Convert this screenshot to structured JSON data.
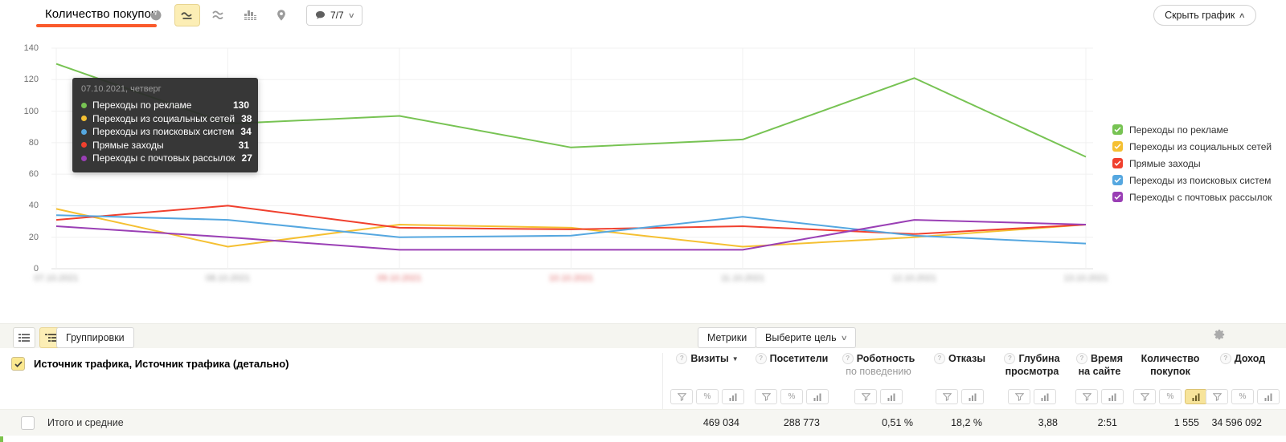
{
  "header": {
    "title": "Количество покупок",
    "chart_type_icons": [
      "pie-chart-icon",
      "line-chart-icon",
      "stacked-area-icon",
      "bar-columns-icon",
      "map-pin-icon"
    ],
    "selected_chart_type": "line-chart-icon",
    "segments": {
      "icon": "comment-icon",
      "label": "7/7"
    },
    "hide_chart_label": "Скрыть график"
  },
  "chart_data": {
    "type": "line",
    "x": [
      "07.10.2021",
      "08.10.2021",
      "09.10.2021",
      "10.10.2021",
      "11.10.2021",
      "12.10.2021",
      "13.10.2021"
    ],
    "x_weekend_indices": [
      2,
      3
    ],
    "x_labels_blurred": true,
    "ylim": [
      0,
      140
    ],
    "yticks": [
      0,
      20,
      40,
      60,
      80,
      100,
      120,
      140
    ],
    "grid": true,
    "legend_position": "right",
    "series": [
      {
        "name": "Переходы по рекламе",
        "color": "#77c353",
        "values": [
          130,
          92,
          97,
          77,
          82,
          121,
          71
        ]
      },
      {
        "name": "Переходы из социальных сетей",
        "color": "#f5c032",
        "values": [
          38,
          14,
          28,
          26,
          14,
          20,
          28
        ]
      },
      {
        "name": "Прямые заходы",
        "color": "#f0402e",
        "values": [
          31,
          40,
          26,
          25,
          27,
          22,
          28
        ]
      },
      {
        "name": "Переходы из поисковых систем",
        "color": "#55a7e0",
        "values": [
          34,
          31,
          20,
          21,
          33,
          21,
          16
        ]
      },
      {
        "name": "Переходы с почтовых рассылок",
        "color": "#9a3fb5",
        "values": [
          27,
          20,
          12,
          12,
          12,
          31,
          28
        ]
      }
    ],
    "tooltip": {
      "date": "07.10.2021, четверг",
      "entries": [
        {
          "label": "Переходы по рекламе",
          "value": "130",
          "color": "#77c353"
        },
        {
          "label": "Переходы из социальных сетей",
          "value": "38",
          "color": "#f5c032"
        },
        {
          "label": "Переходы из поисковых систем",
          "value": "34",
          "color": "#55a7e0"
        },
        {
          "label": "Прямые заходы",
          "value": "31",
          "color": "#f0402e"
        },
        {
          "label": "Переходы с почтовых рассылок",
          "value": "27",
          "color": "#9a3fb5"
        }
      ]
    },
    "legend": [
      {
        "label": "Переходы по рекламе",
        "color": "#77c353",
        "checked": true
      },
      {
        "label": "Переходы из социальных сетей",
        "color": "#f5c032",
        "checked": true
      },
      {
        "label": "Прямые заходы",
        "color": "#f0402e",
        "checked": true
      },
      {
        "label": "Переходы из поисковых систем",
        "color": "#55a7e0",
        "checked": true
      },
      {
        "label": "Переходы с почтовых рассылок",
        "color": "#9a3fb5",
        "checked": true
      }
    ]
  },
  "table": {
    "view_toggle_icons": [
      "flat-list-icon",
      "tree-list-icon"
    ],
    "selected_view": "tree-list-icon",
    "groupings_button": "Группировки",
    "metrics_button": "Метрики",
    "goal_button": "Выберите цель",
    "gear_icon": "settings-gear-icon",
    "dimension_label": "Источник трафика, Источник трафика (детально)",
    "columns": [
      {
        "title": "Визиты",
        "subtitle": "",
        "subtitle_gray": false,
        "help": true,
        "sort": "desc",
        "filters": [
          "funnel",
          "percent",
          "bars"
        ],
        "active_filter": ""
      },
      {
        "title": "Посетители",
        "subtitle": "",
        "subtitle_gray": false,
        "help": true,
        "sort": "",
        "filters": [
          "funnel",
          "percent",
          "bars"
        ],
        "active_filter": ""
      },
      {
        "title": "Роботность",
        "subtitle": "по поведению",
        "subtitle_gray": true,
        "help": true,
        "sort": "",
        "filters": [
          "funnel",
          "bars"
        ],
        "active_filter": ""
      },
      {
        "title": "Отказы",
        "subtitle": "",
        "subtitle_gray": false,
        "help": true,
        "sort": "",
        "filters": [
          "funnel",
          "bars"
        ],
        "active_filter": ""
      },
      {
        "title": "Глубина",
        "subtitle": "просмотра",
        "subtitle_gray": false,
        "help": true,
        "sort": "",
        "filters": [
          "funnel",
          "bars"
        ],
        "active_filter": ""
      },
      {
        "title": "Время",
        "subtitle": "на сайте",
        "subtitle_gray": false,
        "help": true,
        "sort": "",
        "filters": [
          "funnel",
          "bars"
        ],
        "active_filter": ""
      },
      {
        "title": "Количество",
        "subtitle": "покупок",
        "subtitle_gray": false,
        "help": false,
        "sort": "",
        "filters": [
          "funnel",
          "percent",
          "bars"
        ],
        "active_filter": "bars"
      },
      {
        "title": "Доход",
        "subtitle": "",
        "subtitle_gray": false,
        "help": true,
        "sort": "",
        "filters": [
          "funnel",
          "percent",
          "bars"
        ],
        "active_filter": ""
      }
    ],
    "totals": {
      "label": "Итого и средние",
      "values": [
        "469 034",
        "288 773",
        "0,51 %",
        "18,2 %",
        "3,88",
        "2:51",
        "1 555",
        "34 596 092"
      ]
    }
  }
}
